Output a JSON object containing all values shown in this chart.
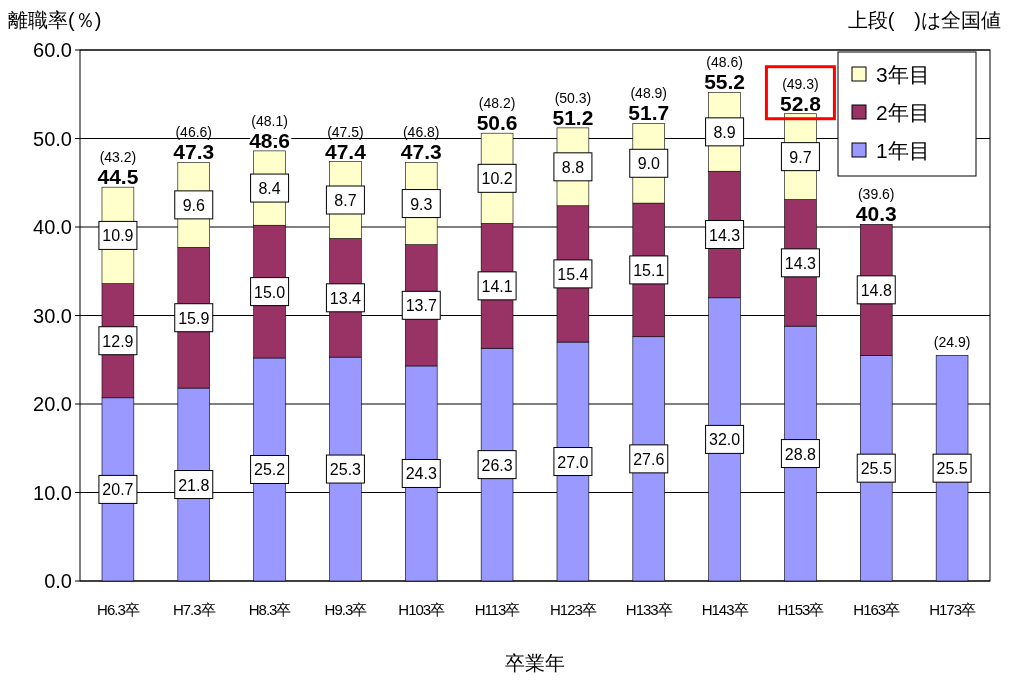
{
  "chart_data": {
    "type": "bar",
    "stacked": true,
    "ylabel": "離職率(％)",
    "subtitle": "上段(　)は全国値",
    "xlabel": "卒業年",
    "categories": [
      "H6.3卒",
      "H7.3卒",
      "H8.3卒",
      "H9.3卒",
      "H103卒",
      "H113卒",
      "H123卒",
      "H133卒",
      "H143卒",
      "H153卒",
      "H163卒",
      "H173卒"
    ],
    "series": [
      {
        "name": "1年目",
        "color": "#9999ff",
        "values": [
          20.7,
          21.8,
          25.2,
          25.3,
          24.3,
          26.3,
          27.0,
          27.6,
          32.0,
          28.8,
          25.5,
          25.5
        ],
        "value_labels": [
          "20.7",
          "21.8",
          "25.2",
          "25.3",
          "24.3",
          "26.3",
          "27.0",
          "27.6",
          "32.0",
          "28.8",
          "25.5",
          "25.5"
        ]
      },
      {
        "name": "2年目",
        "color": "#993366",
        "values": [
          12.9,
          15.9,
          15.0,
          13.4,
          13.7,
          14.1,
          15.4,
          15.1,
          14.3,
          14.3,
          14.8,
          null
        ],
        "value_labels": [
          "12.9",
          "15.9",
          "15.0",
          "13.4",
          "13.7",
          "14.1",
          "15.4",
          "15.1",
          "14.3",
          "14.3",
          "14.8",
          null
        ]
      },
      {
        "name": "3年目",
        "color": "#ffffcc",
        "values": [
          10.9,
          9.6,
          8.4,
          8.7,
          9.3,
          10.2,
          8.8,
          9.0,
          8.9,
          9.7,
          null,
          null
        ],
        "value_labels": [
          "10.9",
          "9.6",
          "8.4",
          "8.7",
          "9.3",
          "10.2",
          "8.8",
          "9.0",
          "8.9",
          "9.7",
          null,
          null
        ]
      }
    ],
    "totals": [
      "44.5",
      "47.3",
      "48.6",
      "47.4",
      "47.3",
      "50.6",
      "51.2",
      "51.7",
      "55.2",
      "52.8",
      "40.3",
      null
    ],
    "annotations": [
      {
        "text": "(43.2)",
        "x": "H6.3卒",
        "y": 44.5
      },
      {
        "text": "(46.6)",
        "x": "H7.3卒",
        "y": 47.3
      },
      {
        "text": "(48.1)",
        "x": "H8.3卒",
        "y": 48.6
      },
      {
        "text": "(47.5)",
        "x": "H9.3卒",
        "y": 47.4
      },
      {
        "text": "(46.8)",
        "x": "H103卒",
        "y": 47.3
      },
      {
        "text": "(48.2)",
        "x": "H113卒",
        "y": 50.6
      },
      {
        "text": "(50.3)",
        "x": "H123卒",
        "y": 51.2
      },
      {
        "text": "(48.9)",
        "x": "H133卒",
        "y": 51.7
      },
      {
        "text": "(48.6)",
        "x": "H143卒",
        "y": 55.2
      },
      {
        "text": "(49.3)",
        "x": "H153卒",
        "y": 52.8
      },
      {
        "text": "(39.6)",
        "x": "H163卒",
        "y": 40.3
      },
      {
        "text": "(24.9)",
        "x": "H173卒",
        "y": 25.5
      }
    ],
    "ylim": [
      0,
      60
    ],
    "yticks": [
      {
        "value": 0,
        "label": "0.0"
      },
      {
        "value": 10,
        "label": "10.0"
      },
      {
        "value": 20,
        "label": "20.0"
      },
      {
        "value": 30,
        "label": "30.0"
      },
      {
        "value": 40,
        "label": "40.0"
      },
      {
        "value": 50,
        "label": "50.0"
      },
      {
        "value": 60,
        "label": "60.0"
      }
    ],
    "grid": "y",
    "legend": "top right"
  }
}
